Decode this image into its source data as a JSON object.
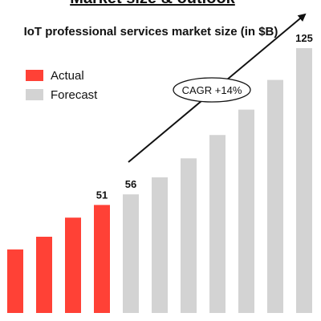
{
  "header": {
    "title": "Market size & outlook"
  },
  "chart_data": {
    "type": "bar",
    "title": "IoT professional services market size (in $B)",
    "legend": [
      {
        "name": "Actual",
        "color": "#FF4136"
      },
      {
        "name": "Forecast",
        "color": "#D3D3D3"
      }
    ],
    "legend_placement": "top-left",
    "grid": false,
    "ylim": [
      0,
      130
    ],
    "series": [
      {
        "name": "Actual",
        "values": [
          30,
          36,
          45,
          51
        ]
      },
      {
        "name": "Forecast",
        "values": [
          56,
          64,
          73,
          84,
          96,
          110,
          125
        ]
      }
    ],
    "data_labels": [
      {
        "bar_index": 3,
        "text": "51"
      },
      {
        "bar_index": 4,
        "text": "56"
      },
      {
        "bar_index": 10,
        "text": "125"
      }
    ],
    "annotation": {
      "text": "CAGR +14%"
    },
    "colors": {
      "actual": "#FF4136",
      "forecast": "#D3D3D3",
      "text": "#111111"
    }
  }
}
